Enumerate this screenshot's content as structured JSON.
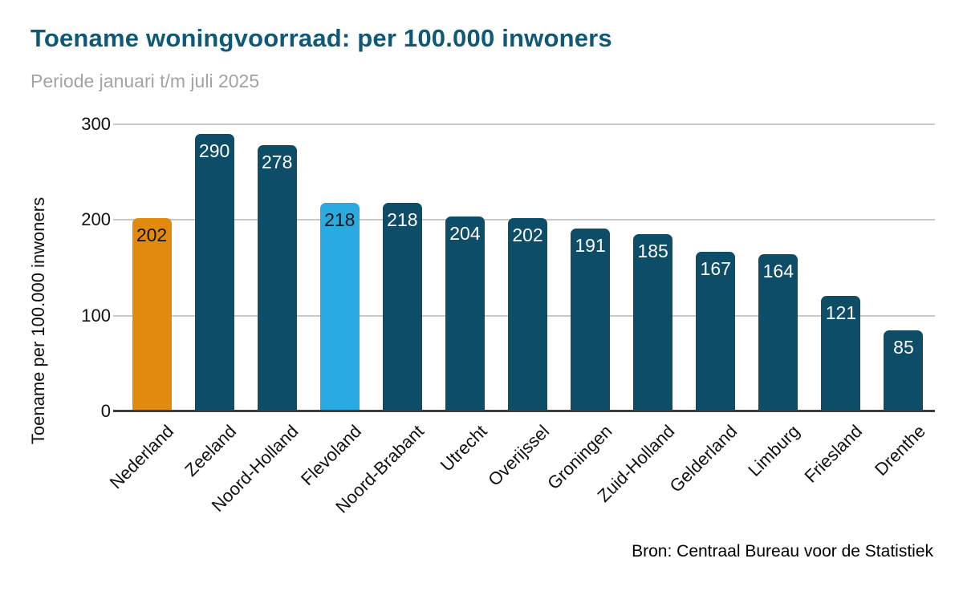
{
  "chart_data": {
    "type": "bar",
    "title": "Toename woningvoorraad: per 100.000 inwoners",
    "subtitle": "Periode januari t/m juli 2025",
    "categories": [
      "Nederland",
      "Zeeland",
      "Noord-Holland",
      "Flevoland",
      "Noord-Brabant",
      "Utrecht",
      "Overijssel",
      "Groningen",
      "Zuid-Holland",
      "Gelderland",
      "Limburg",
      "Friesland",
      "Drenthe"
    ],
    "values": [
      202,
      290,
      278,
      218,
      218,
      204,
      202,
      191,
      185,
      167,
      164,
      121,
      85
    ],
    "bar_colors": [
      "#E18A0D",
      "#0E4D68",
      "#0E4D68",
      "#29ABE2",
      "#0E4D68",
      "#0E4D68",
      "#0E4D68",
      "#0E4D68",
      "#0E4D68",
      "#0E4D68",
      "#0E4D68",
      "#0E4D68",
      "#0E4D68"
    ],
    "value_label_colors": [
      "#111111",
      "#FFFFFF",
      "#FFFFFF",
      "#111111",
      "#FFFFFF",
      "#FFFFFF",
      "#FFFFFF",
      "#FFFFFF",
      "#FFFFFF",
      "#FFFFFF",
      "#FFFFFF",
      "#FFFFFF",
      "#FFFFFF"
    ],
    "xlabel": "",
    "ylabel": "Toename per 100.000 inwoners",
    "ylim": [
      0,
      300
    ],
    "yticks": [
      0,
      100,
      200,
      300
    ],
    "grid": true,
    "legend": false,
    "source": "Bron: Centraal Bureau voor de Statistiek"
  },
  "colors": {
    "title": "#0F5878",
    "subtitle": "#A3A3A3",
    "gridline": "#C9C9C9",
    "axis_line": "#3C3C3C",
    "bar_default": "#0E4D68",
    "bar_highlight_nederland": "#E18A0D",
    "bar_highlight_flevoland": "#29ABE2"
  }
}
